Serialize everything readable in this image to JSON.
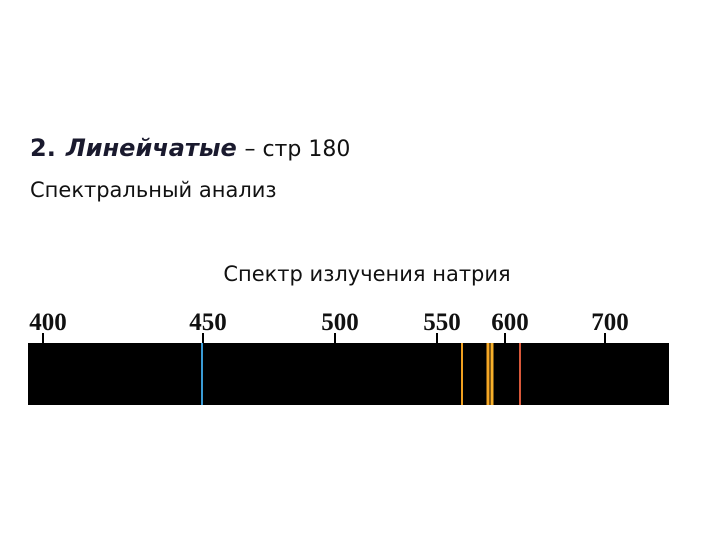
{
  "heading": {
    "number": "2.",
    "term": "Линейчатые",
    "rest": "– стр 180"
  },
  "subtitle": "Спектральный анализ",
  "diagram": {
    "caption": "Спектр излучения натрия",
    "scale_labels": [
      400,
      450,
      500,
      550,
      600,
      700
    ]
  }
}
